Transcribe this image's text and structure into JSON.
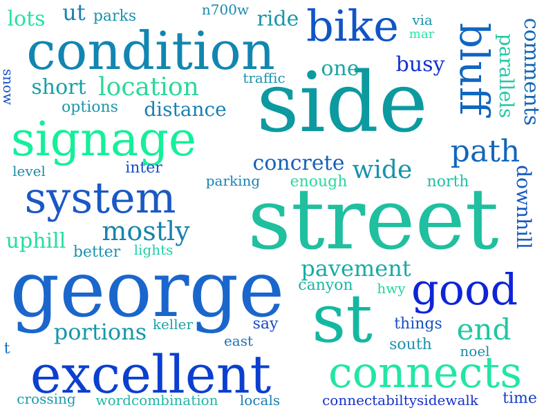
{
  "words": [
    {
      "text": "street",
      "color": "#1fbf9f"
    },
    {
      "text": "side",
      "color": "#0c9aa0"
    },
    {
      "text": "george",
      "color": "#1a66cc"
    },
    {
      "text": "condition",
      "color": "#1186b0"
    },
    {
      "text": "st",
      "color": "#14b8a0"
    },
    {
      "text": "excellent",
      "color": "#0b3fcf"
    },
    {
      "text": "signage",
      "color": "#14f09a"
    },
    {
      "text": "system",
      "color": "#1a58c4"
    },
    {
      "text": "bike",
      "color": "#0f55c6"
    },
    {
      "text": "connects",
      "color": "#22e6a4"
    },
    {
      "text": "good",
      "color": "#0e24d8"
    },
    {
      "text": "bluff",
      "color": "#1166c0"
    },
    {
      "text": "path",
      "color": "#1366bb"
    },
    {
      "text": "mostly",
      "color": "#1683ad"
    },
    {
      "text": "end",
      "color": "#1fc7a0"
    },
    {
      "text": "location",
      "color": "#2ad99a"
    },
    {
      "text": "pavement",
      "color": "#19aaa6"
    },
    {
      "text": "wide",
      "color": "#1593ad"
    },
    {
      "text": "concrete",
      "color": "#1660b6"
    },
    {
      "text": "portions",
      "color": "#1697a8"
    },
    {
      "text": "distance",
      "color": "#1a7fb0"
    },
    {
      "text": "short",
      "color": "#189fa4"
    },
    {
      "text": "busy",
      "color": "#1532d0"
    },
    {
      "text": "ride",
      "color": "#1897a7"
    },
    {
      "text": "lots",
      "color": "#25e2a2"
    },
    {
      "text": "ut",
      "color": "#1a80b4"
    },
    {
      "text": "one",
      "color": "#1aa6a2"
    },
    {
      "text": "comments",
      "color": "#1366b8"
    },
    {
      "text": "parallels",
      "color": "#21c9a4"
    },
    {
      "text": "downhill",
      "color": "#1558c0"
    },
    {
      "text": "uphill",
      "color": "#23dca0"
    },
    {
      "text": "options",
      "color": "#1a96aa"
    },
    {
      "text": "parks",
      "color": "#1b90ad"
    },
    {
      "text": "n700w",
      "color": "#1a88b0"
    },
    {
      "text": "via",
      "color": "#1894a8"
    },
    {
      "text": "mar",
      "color": "#27e6a0"
    },
    {
      "text": "traffic",
      "color": "#1b93ab"
    },
    {
      "text": "snow",
      "color": "#164ec8"
    },
    {
      "text": "inter",
      "color": "#1650c4"
    },
    {
      "text": "level",
      "color": "#1a8cae"
    },
    {
      "text": "parking",
      "color": "#1a82b2"
    },
    {
      "text": "enough",
      "color": "#2ad89e"
    },
    {
      "text": "north",
      "color": "#20c0a4"
    },
    {
      "text": "better",
      "color": "#1a92ab"
    },
    {
      "text": "lights",
      "color": "#1fd0a4"
    },
    {
      "text": "canyon",
      "color": "#1ab4a4"
    },
    {
      "text": "hwy",
      "color": "#22d4a0"
    },
    {
      "text": "say",
      "color": "#1644c6"
    },
    {
      "text": "things",
      "color": "#1650c2"
    },
    {
      "text": "keller",
      "color": "#1aa2a6"
    },
    {
      "text": "east",
      "color": "#1a72b6"
    },
    {
      "text": "south",
      "color": "#1a92ac"
    },
    {
      "text": "noel",
      "color": "#1a88ae"
    },
    {
      "text": "t",
      "color": "#1770ba"
    },
    {
      "text": "crossing",
      "color": "#1a9aa8"
    },
    {
      "text": "wordcombination",
      "color": "#1fb6a4"
    },
    {
      "text": "locals",
      "color": "#1a7cb4"
    },
    {
      "text": "connectabiltysidewalk",
      "color": "#1530cc"
    },
    {
      "text": "time",
      "color": "#1640c8"
    }
  ]
}
